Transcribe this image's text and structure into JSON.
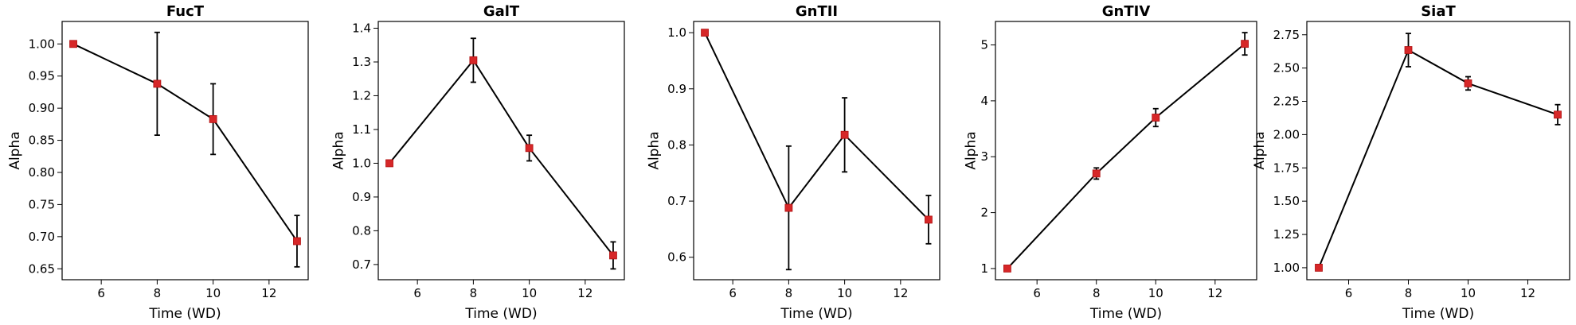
{
  "colors": {
    "marker": "#d62728",
    "line": "#000000",
    "errorbar": "#000000",
    "axes": "#000000"
  },
  "chart_data": [
    {
      "type": "line",
      "title": "FucT",
      "xlabel": "Time (WD)",
      "ylabel": "Alpha",
      "x": [
        5,
        8,
        10,
        13
      ],
      "series": [
        {
          "values": [
            1.0,
            0.938,
            0.883,
            0.693
          ],
          "errors": [
            0.0,
            0.08,
            0.055,
            0.04
          ]
        }
      ],
      "xlim": [
        4.6,
        13.4
      ],
      "ylim": [
        0.633,
        1.035
      ],
      "xticks": [
        6,
        8,
        10,
        12
      ],
      "yticks": [
        0.65,
        0.7,
        0.75,
        0.8,
        0.85,
        0.9,
        0.95,
        1.0
      ],
      "ytick_labels": [
        "0.65",
        "0.70",
        "0.75",
        "0.80",
        "0.85",
        "0.90",
        "0.95",
        "1.00"
      ]
    },
    {
      "type": "line",
      "title": "GalT",
      "xlabel": "Time (WD)",
      "ylabel": "Alpha",
      "x": [
        5,
        8,
        10,
        13
      ],
      "series": [
        {
          "values": [
            1.0,
            1.305,
            1.045,
            0.727
          ],
          "errors": [
            0.0,
            0.065,
            0.038,
            0.04
          ]
        }
      ],
      "xlim": [
        4.6,
        13.4
      ],
      "ylim": [
        0.655,
        1.42
      ],
      "xticks": [
        6,
        8,
        10,
        12
      ],
      "yticks": [
        0.7,
        0.8,
        0.9,
        1.0,
        1.1,
        1.2,
        1.3,
        1.4
      ],
      "ytick_labels": [
        "0.7",
        "0.8",
        "0.9",
        "1.0",
        "1.1",
        "1.2",
        "1.3",
        "1.4"
      ]
    },
    {
      "type": "line",
      "title": "GnTII",
      "xlabel": "Time (WD)",
      "ylabel": "Alpha",
      "x": [
        5,
        8,
        10,
        13
      ],
      "series": [
        {
          "values": [
            1.0,
            0.688,
            0.818,
            0.667
          ],
          "errors": [
            0.0,
            0.11,
            0.066,
            0.043
          ]
        }
      ],
      "xlim": [
        4.6,
        13.4
      ],
      "ylim": [
        0.56,
        1.02
      ],
      "xticks": [
        6,
        8,
        10,
        12
      ],
      "yticks": [
        0.6,
        0.7,
        0.8,
        0.9,
        1.0
      ],
      "ytick_labels": [
        "0.6",
        "0.7",
        "0.8",
        "0.9",
        "1.0"
      ]
    },
    {
      "type": "line",
      "title": "GnTIV",
      "xlabel": "Time (WD)",
      "ylabel": "Alpha",
      "x": [
        5,
        8,
        10,
        13
      ],
      "series": [
        {
          "values": [
            1.0,
            2.7,
            3.7,
            5.02
          ],
          "errors": [
            0.0,
            0.1,
            0.16,
            0.2
          ]
        }
      ],
      "xlim": [
        4.6,
        13.4
      ],
      "ylim": [
        0.8,
        5.42
      ],
      "xticks": [
        6,
        8,
        10,
        12
      ],
      "yticks": [
        1,
        2,
        3,
        4,
        5
      ],
      "ytick_labels": [
        "1",
        "2",
        "3",
        "4",
        "5"
      ]
    },
    {
      "type": "line",
      "title": "SiaT",
      "xlabel": "Time (WD)",
      "ylabel": "Alpha",
      "x": [
        5,
        8,
        10,
        13
      ],
      "series": [
        {
          "values": [
            1.0,
            2.635,
            2.385,
            2.15
          ],
          "errors": [
            0.0,
            0.125,
            0.05,
            0.075
          ]
        }
      ],
      "xlim": [
        4.6,
        13.4
      ],
      "ylim": [
        0.91,
        2.85
      ],
      "xticks": [
        6,
        8,
        10,
        12
      ],
      "yticks": [
        1.0,
        1.25,
        1.5,
        1.75,
        2.0,
        2.25,
        2.5,
        2.75
      ],
      "ytick_labels": [
        "1.00",
        "1.25",
        "1.50",
        "1.75",
        "2.00",
        "2.25",
        "2.50",
        "2.75"
      ]
    }
  ]
}
